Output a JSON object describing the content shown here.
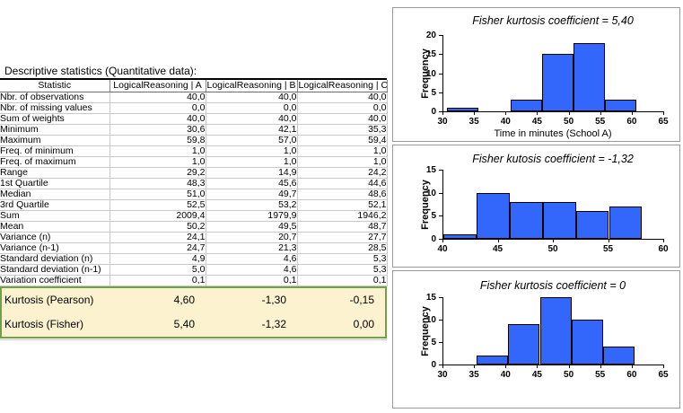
{
  "table": {
    "title": "Descriptive statistics (Quantitative data):",
    "columns": [
      "Statistic",
      "LogicalReasoning | A",
      "LogicalReasoning | B",
      "LogicalReasoning | C"
    ],
    "rows": [
      [
        "Nbr. of observations",
        "40,0",
        "40,0",
        "40,0"
      ],
      [
        "Nbr. of missing values",
        "0,0",
        "0,0",
        "0,0"
      ],
      [
        "Sum of weights",
        "40,0",
        "40,0",
        "40,0"
      ],
      [
        "Minimum",
        "30,6",
        "42,1",
        "35,3"
      ],
      [
        "Maximum",
        "59,8",
        "57,0",
        "59,4"
      ],
      [
        "Freq. of minimum",
        "1,0",
        "1,0",
        "1,0"
      ],
      [
        "Freq. of maximum",
        "1,0",
        "1,0",
        "1,0"
      ],
      [
        "Range",
        "29,2",
        "14,9",
        "24,2"
      ],
      [
        "1st Quartile",
        "48,3",
        "45,6",
        "44,6"
      ],
      [
        "Median",
        "51,0",
        "49,7",
        "48,6"
      ],
      [
        "3rd Quartile",
        "52,5",
        "53,2",
        "52,1"
      ],
      [
        "Sum",
        "2009,4",
        "1979,9",
        "1946,2"
      ],
      [
        "Mean",
        "50,2",
        "49,5",
        "48,7"
      ],
      [
        "Variance (n)",
        "24,1",
        "20,7",
        "27,7"
      ],
      [
        "Variance (n-1)",
        "24,7",
        "21,3",
        "28,5"
      ],
      [
        "Standard deviation (n)",
        "4,9",
        "4,6",
        "5,3"
      ],
      [
        "Standard deviation (n-1)",
        "5,0",
        "4,6",
        "5,3"
      ],
      [
        "Variation coefficient",
        "0,1",
        "0,1",
        "0,1"
      ]
    ],
    "highlight_rows": [
      [
        "Kurtosis (Pearson)",
        "4,60",
        "-1,30",
        "-0,15"
      ],
      [
        "Kurtosis (Fisher)",
        "5,40",
        "-1,32",
        "0,00"
      ]
    ],
    "highlight_bg": "#FCF2D0",
    "highlight_border": "#70A144"
  },
  "chart_data": [
    {
      "type": "bar",
      "title": "Fisher kurtosis coefficient = 5,40",
      "ylabel": "Frequency",
      "xlabel": "Time in minutes (School A)",
      "xlim": [
        30,
        65
      ],
      "ylim": [
        0,
        20
      ],
      "xticks": [
        30,
        35,
        40,
        45,
        50,
        55,
        60,
        65
      ],
      "yticks": [
        0,
        5,
        10,
        15,
        20
      ],
      "bin_edges": [
        30.6,
        35.6,
        40.6,
        45.6,
        50.6,
        55.6,
        60.6
      ],
      "frequencies": [
        1,
        0,
        3,
        15,
        18,
        3
      ],
      "bar_color": "#3366FB",
      "legend": "none",
      "grid": false
    },
    {
      "type": "bar",
      "title": "Fisher kutosis coefficient = -1,32",
      "ylabel": "Frequency",
      "xlabel": "",
      "xlim": [
        40,
        60
      ],
      "ylim": [
        0,
        15
      ],
      "xticks": [
        40,
        45,
        50,
        55,
        60
      ],
      "yticks": [
        0,
        5,
        10,
        15
      ],
      "bin_edges": [
        40,
        43,
        46,
        49,
        52,
        55,
        58
      ],
      "frequencies": [
        1,
        10,
        8,
        8,
        6,
        7
      ],
      "bar_color": "#3366FB",
      "legend": "none",
      "grid": false
    },
    {
      "type": "bar",
      "title": "Fisher kurtosis coefficient = 0",
      "ylabel": "Frequency",
      "xlabel": "",
      "xlim": [
        30,
        65
      ],
      "ylim": [
        0,
        15
      ],
      "xticks": [
        30,
        35,
        40,
        45,
        50,
        55,
        60,
        65
      ],
      "yticks": [
        0,
        5,
        10,
        15
      ],
      "bin_edges": [
        35.3,
        40.3,
        45.3,
        50.3,
        55.3,
        60.3
      ],
      "frequencies": [
        2,
        9,
        15,
        10,
        4
      ],
      "bar_color": "#3366FB",
      "legend": "none",
      "grid": false
    }
  ]
}
